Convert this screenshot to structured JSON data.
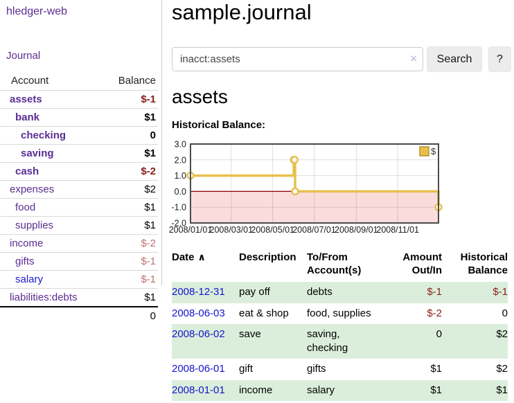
{
  "sidebar": {
    "app_title": "hledger-web",
    "journal_link": "Journal",
    "accounts_table": {
      "account_header": "Account",
      "balance_header": "Balance",
      "rows": [
        {
          "name": "assets",
          "depth": 1,
          "bold": true,
          "balance": "$-1",
          "balance_style": "negative-strong"
        },
        {
          "name": "bank",
          "depth": 2,
          "bold": true,
          "balance": "$1",
          "balance_style": "positive-strong"
        },
        {
          "name": "checking",
          "depth": 3,
          "bold": true,
          "balance": "0",
          "balance_style": "positive-strong"
        },
        {
          "name": "saving",
          "depth": 3,
          "bold": true,
          "balance": "$1",
          "balance_style": "positive-strong"
        },
        {
          "name": "cash",
          "depth": 2,
          "bold": true,
          "balance": "$-2",
          "balance_style": "negative-strong"
        },
        {
          "name": "expenses",
          "depth": 1,
          "bold": false,
          "balance": "$2",
          "balance_style": "normal"
        },
        {
          "name": "food",
          "depth": 2,
          "bold": false,
          "balance": "$1",
          "balance_style": "normal"
        },
        {
          "name": "supplies",
          "depth": 2,
          "bold": false,
          "balance": "$1",
          "balance_style": "normal"
        },
        {
          "name": "income",
          "depth": 1,
          "bold": false,
          "balance": "$-2",
          "balance_style": "negative-muted"
        },
        {
          "name": "gifts",
          "depth": 2,
          "bold": false,
          "balance": "$-1",
          "balance_style": "negative-muted"
        },
        {
          "name": "salary",
          "depth": 2,
          "bold": false,
          "link_color": "blue",
          "balance": "$-1",
          "balance_style": "negative-muted"
        },
        {
          "name": "liabilities:debts",
          "depth": 1,
          "bold": false,
          "balance": "$1",
          "balance_style": "normal"
        }
      ],
      "total": "0"
    }
  },
  "main": {
    "title": "sample.journal",
    "search": {
      "value": "inacct:assets",
      "clear_icon": "×",
      "search_button": "Search",
      "help_button": "?"
    },
    "account_heading": "assets",
    "chart_title": "Historical Balance:",
    "register": {
      "headers": {
        "date": "Date",
        "sort_indicator": "∧",
        "description": "Description",
        "accounts": "To/From Account(s)",
        "amount": "Amount Out/In",
        "balance": "Historical Balance"
      },
      "rows": [
        {
          "date": "2008-12-31",
          "description": "pay off",
          "accounts": "debts",
          "amount": "$-1",
          "balance": "$-1"
        },
        {
          "date": "2008-06-03",
          "description": "eat & shop",
          "accounts": "food, supplies",
          "amount": "$-2",
          "balance": "0"
        },
        {
          "date": "2008-06-02",
          "description": "save",
          "accounts": "saving, checking",
          "amount": "0",
          "balance": "$2"
        },
        {
          "date": "2008-06-01",
          "description": "gift",
          "accounts": "gifts",
          "amount": "$1",
          "balance": "$2"
        },
        {
          "date": "2008-01-01",
          "description": "income",
          "accounts": "salary",
          "amount": "$1",
          "balance": "$1"
        }
      ]
    }
  },
  "chart_data": {
    "type": "line",
    "line_style": "step-after",
    "title": "Historical Balance:",
    "series": [
      {
        "name": "$",
        "x": [
          "2008-01-01",
          "2008-06-01",
          "2008-06-02",
          "2008-06-03",
          "2008-12-31"
        ],
        "y": [
          1,
          2,
          2,
          0,
          -1
        ]
      }
    ],
    "xrange": [
      "2008-01-01",
      "2008-12-31"
    ],
    "ylim": [
      -2,
      3
    ],
    "ytick_labels": [
      "3.0",
      "2.0",
      "1.0",
      "0.0",
      "-1.0",
      "-2.0"
    ],
    "ytick_values": [
      3,
      2,
      1,
      0,
      -1,
      -2
    ],
    "xticks": [
      {
        "label": "2008/01/01",
        "date": "2008-01-01"
      },
      {
        "label": "2008/03/01",
        "date": "2008-03-01"
      },
      {
        "label": "2008/05/01",
        "date": "2008-05-01"
      },
      {
        "label": "2008/07/01",
        "date": "2008-07-01"
      },
      {
        "label": "2008/09/01",
        "date": "2008-09-01"
      },
      {
        "label": "2008/11/01",
        "date": "2008-11-01"
      }
    ],
    "grid": true,
    "legend": [
      {
        "label": "$",
        "color": "#e8c04f"
      }
    ],
    "legend_position": "top-right",
    "negative_region_fill": "#fadcdc",
    "zero_line_color": "#8b0000"
  },
  "colors": {
    "link_purple": "#5b2d91",
    "link_blue": "#1a1ace",
    "date_link_blue": "#1414cc",
    "negative_strong": "#8b1c1c",
    "negative_muted": "#bf7171",
    "row_stripe_green": "#dbeedb",
    "chart_line_gold": "#e8c04f"
  }
}
